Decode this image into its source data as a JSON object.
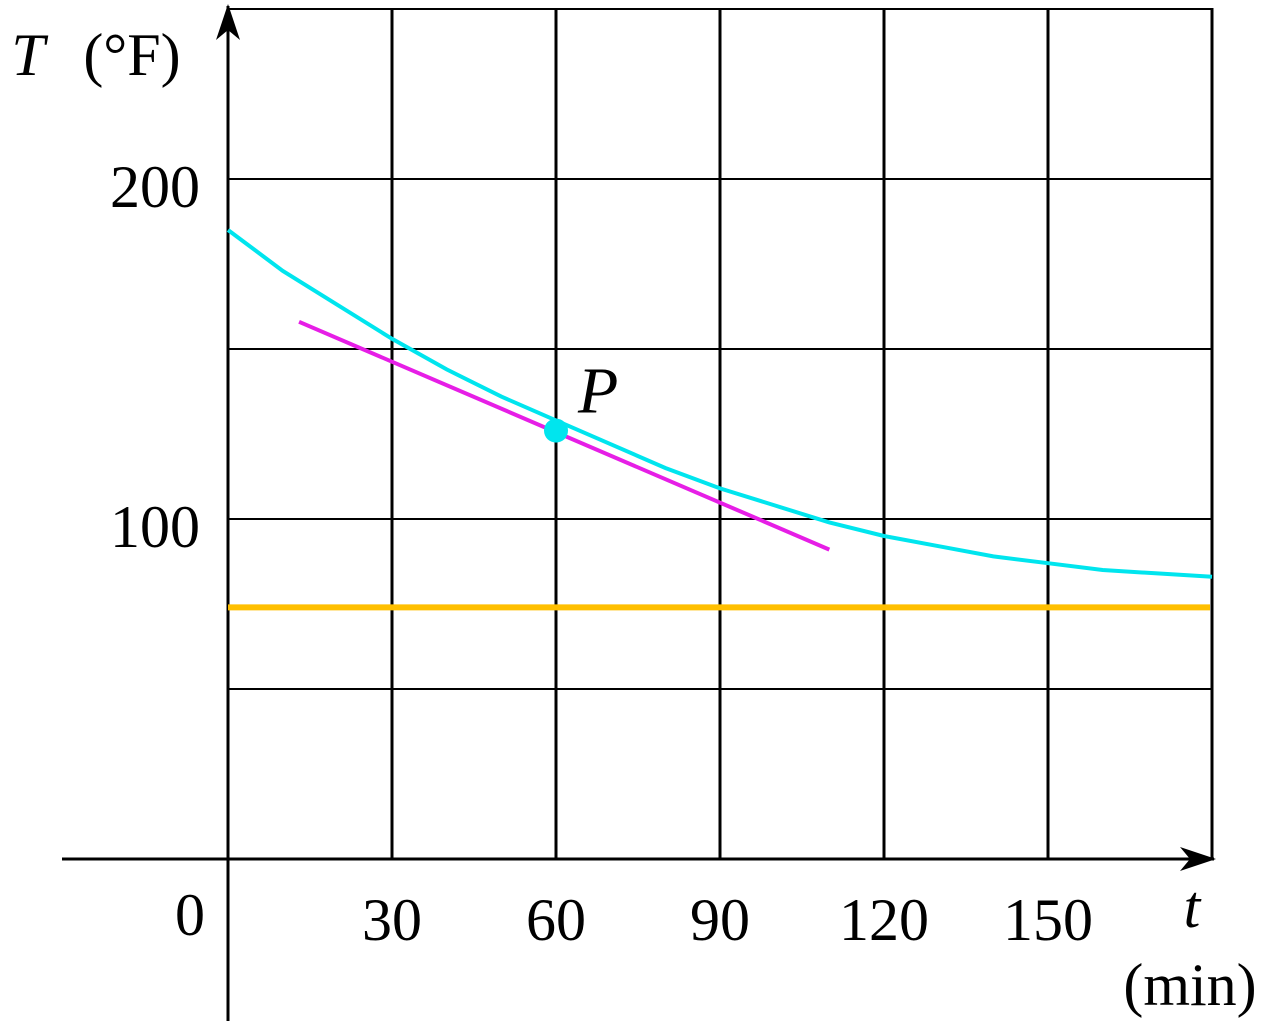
{
  "chart_data": {
    "type": "line",
    "xlabel_var": "t",
    "xlabel_unit": "(min)",
    "ylabel_var": "T",
    "ylabel_unit": "(°F)",
    "origin_label": "0",
    "x_ticks": [
      "30",
      "60",
      "90",
      "120",
      "150"
    ],
    "y_ticks": [
      "100",
      "200"
    ],
    "xlim": [
      0,
      180
    ],
    "ylim": [
      0,
      250
    ],
    "grid": true,
    "x_grid_step": 30,
    "y_grid_step": 50,
    "curve": {
      "color": "#00e5ee",
      "x": [
        0,
        10,
        20,
        30,
        40,
        50,
        60,
        70,
        80,
        90,
        100,
        110,
        120,
        130,
        140,
        150,
        160,
        170,
        180
      ],
      "y": [
        185,
        173,
        163,
        153,
        144,
        136,
        129,
        122,
        115,
        109,
        104,
        99,
        95,
        92,
        89,
        87,
        85,
        84,
        83
      ]
    },
    "tangent": {
      "color": "#e61ee6",
      "x": [
        13,
        110
      ],
      "y": [
        158,
        91
      ]
    },
    "asymptote": {
      "color": "#ffbf00",
      "y": 74
    },
    "point": {
      "label": "P",
      "color": "#00e5ee",
      "x": 60,
      "y": 126
    }
  }
}
